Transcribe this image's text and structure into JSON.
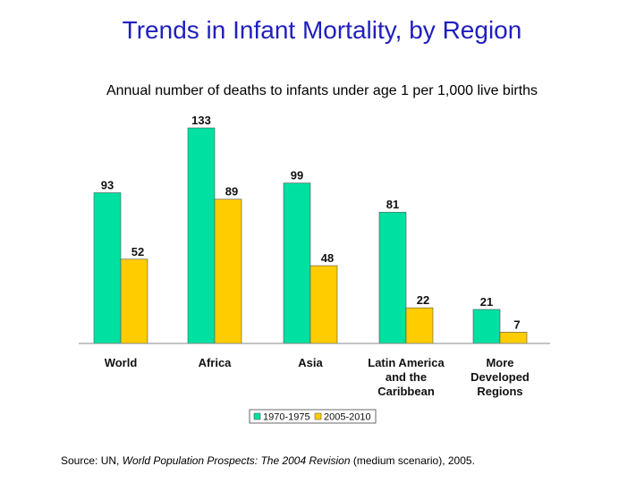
{
  "title": "Trends in Infant Mortality, by Region",
  "subtitle": "Annual number of deaths to infants under age 1 per 1,000 live births",
  "source": {
    "prefix": "Source: UN, ",
    "work": "World Population Prospects: The 2004 Revision",
    "suffix": " (medium scenario), 2005."
  },
  "chart_data": {
    "type": "bar",
    "title": "Trends in Infant Mortality, by Region",
    "ylabel": "Annual number of deaths to infants under age 1 per 1,000 live births",
    "xlabel": "",
    "ylim": [
      0,
      140
    ],
    "grid": false,
    "legend_position": "bottom",
    "categories": [
      [
        "World"
      ],
      [
        "Africa"
      ],
      [
        "Asia"
      ],
      [
        "Latin America",
        "and the",
        "Caribbean"
      ],
      [
        "More",
        "Developed",
        "Regions"
      ]
    ],
    "series": [
      {
        "name": "1970-1975",
        "color": "#00e0a0",
        "values": [
          93,
          133,
          99,
          81,
          21
        ]
      },
      {
        "name": "2005-2010",
        "color": "#ffcc00",
        "values": [
          52,
          89,
          48,
          22,
          7
        ]
      }
    ]
  }
}
